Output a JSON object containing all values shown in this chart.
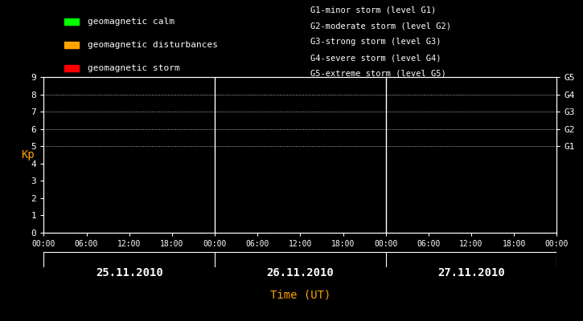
{
  "background_color": "#000000",
  "plot_bg_color": "#000000",
  "text_color": "#ffffff",
  "orange_color": "#ffa500",
  "ylabel": "Kp",
  "xlabel": "Time (UT)",
  "ylim": [
    0,
    9
  ],
  "yticks": [
    0,
    1,
    2,
    3,
    4,
    5,
    6,
    7,
    8,
    9
  ],
  "days": [
    "25.11.2010",
    "26.11.2010",
    "27.11.2010"
  ],
  "xtick_labels": [
    "00:00",
    "06:00",
    "12:00",
    "18:00",
    "00:00",
    "06:00",
    "12:00",
    "18:00",
    "00:00",
    "06:00",
    "12:00",
    "18:00",
    "00:00"
  ],
  "day_dividers": [
    24,
    48
  ],
  "num_hours": 72,
  "legend_items": [
    {
      "label": "geomagnetic calm",
      "color": "#00ff00"
    },
    {
      "label": "geomagnetic disturbances",
      "color": "#ffa500"
    },
    {
      "label": "geomagnetic storm",
      "color": "#ff0000"
    }
  ],
  "storm_legend": [
    "G1-minor storm (level G1)",
    "G2-moderate storm (level G2)",
    "G3-strong storm (level G3)",
    "G4-severe storm (level G4)",
    "G5-extreme storm (level G5)"
  ],
  "g_levels": [
    {
      "label": "G5",
      "y": 9
    },
    {
      "label": "G4",
      "y": 8
    },
    {
      "label": "G3",
      "y": 7
    },
    {
      "label": "G2",
      "y": 6
    },
    {
      "label": "G1",
      "y": 5
    }
  ],
  "dotted_y": [
    5,
    6,
    7,
    8,
    9
  ],
  "font_family": "monospace",
  "font_size": 8,
  "day_label_fontsize": 10,
  "ylabel_fontsize": 10,
  "xlabel_fontsize": 10,
  "legend_fontsize": 8,
  "storm_legend_fontsize": 7.5
}
